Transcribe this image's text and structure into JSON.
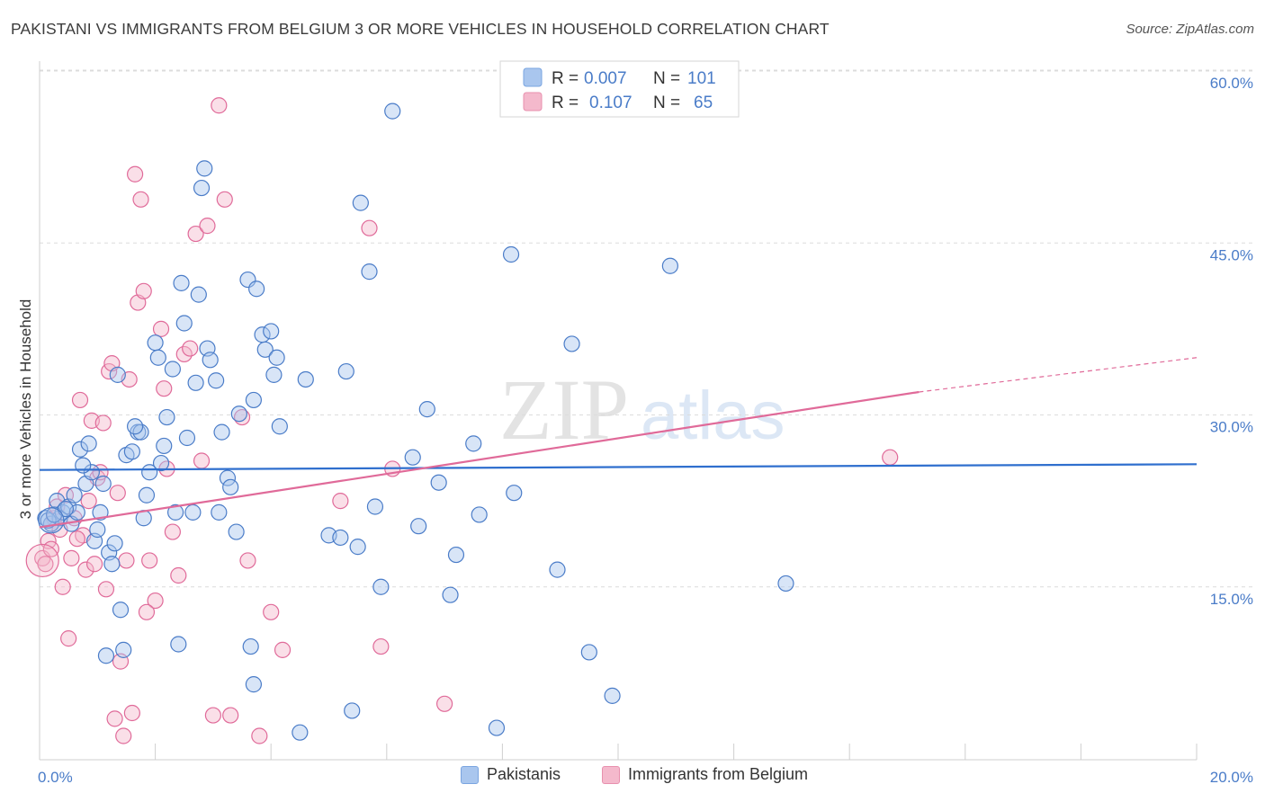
{
  "title": "PAKISTANI VS IMMIGRANTS FROM BELGIUM 3 OR MORE VEHICLES IN HOUSEHOLD CORRELATION CHART",
  "source": "Source: ZipAtlas.com",
  "watermark": {
    "zip": "ZIP",
    "atlas": "atlas"
  },
  "colors": {
    "blue": "#4a7cc8",
    "blue_fill": "#a9c6ee",
    "blue_line": "#2f6fce",
    "pink": "#e06a99",
    "pink_fill": "#f4b9cc",
    "pink_line": "#e06a99",
    "grid": "#dcdcdc"
  },
  "legend": {
    "rows": [
      {
        "r_label": "R =",
        "r_value": "0.007",
        "n_label": "N =",
        "n_value": "101"
      },
      {
        "r_label": "R =",
        "r_value": "0.107",
        "n_label": "N =",
        "n_value": "65"
      }
    ]
  },
  "bottom_legend": [
    "Pakistanis",
    "Immigrants from Belgium"
  ],
  "chart_data": {
    "type": "scatter",
    "ylabel": "3 or more Vehicles in Household",
    "xlim": [
      0,
      20
    ],
    "ylim": [
      0,
      63
    ],
    "x_tick_labels": {
      "left": "0.0%",
      "right": "20.0%"
    },
    "y_ticks": [
      15,
      30,
      45,
      60
    ],
    "y_tick_labels": [
      "15.0%",
      "30.0%",
      "45.0%",
      "60.0%"
    ],
    "grid": true,
    "legend_position": "top-center",
    "series": [
      {
        "name": "Pakistanis",
        "trend": {
          "x": [
            0,
            20
          ],
          "y": [
            25.2,
            25.7
          ]
        },
        "points": [
          [
            0.1,
            21
          ],
          [
            0.2,
            20.5
          ],
          [
            0.3,
            22.5
          ],
          [
            0.35,
            21
          ],
          [
            0.4,
            21.5
          ],
          [
            0.5,
            22
          ],
          [
            0.55,
            20.5
          ],
          [
            0.6,
            23
          ],
          [
            0.65,
            21.5
          ],
          [
            0.7,
            27
          ],
          [
            0.8,
            24
          ],
          [
            0.85,
            27.5
          ],
          [
            0.9,
            25
          ],
          [
            0.95,
            19
          ],
          [
            1.0,
            20
          ],
          [
            1.05,
            21.5
          ],
          [
            1.1,
            24
          ],
          [
            1.15,
            9
          ],
          [
            1.2,
            18
          ],
          [
            1.3,
            18.8
          ],
          [
            1.35,
            33.5
          ],
          [
            1.4,
            13
          ],
          [
            1.5,
            26.5
          ],
          [
            1.6,
            26.8
          ],
          [
            1.7,
            28.5
          ],
          [
            1.75,
            28.5
          ],
          [
            1.8,
            21
          ],
          [
            1.85,
            23
          ],
          [
            1.9,
            25
          ],
          [
            2.0,
            36.3
          ],
          [
            2.05,
            35
          ],
          [
            2.1,
            25.8
          ],
          [
            2.2,
            29.8
          ],
          [
            2.3,
            34
          ],
          [
            2.35,
            21.5
          ],
          [
            2.4,
            10
          ],
          [
            2.45,
            41.5
          ],
          [
            2.5,
            38
          ],
          [
            2.55,
            28
          ],
          [
            2.65,
            21.5
          ],
          [
            2.7,
            32.8
          ],
          [
            2.8,
            49.8
          ],
          [
            2.85,
            51.5
          ],
          [
            2.9,
            35.8
          ],
          [
            2.95,
            34.8
          ],
          [
            3.05,
            33
          ],
          [
            3.1,
            21.5
          ],
          [
            3.15,
            28.5
          ],
          [
            3.25,
            24.5
          ],
          [
            3.3,
            23.7
          ],
          [
            3.4,
            19.8
          ],
          [
            3.6,
            41.8
          ],
          [
            3.65,
            9.8
          ],
          [
            3.7,
            31.3
          ],
          [
            3.7,
            6.5
          ],
          [
            3.75,
            41
          ],
          [
            3.85,
            37
          ],
          [
            3.9,
            35.7
          ],
          [
            4.0,
            37.3
          ],
          [
            4.05,
            33.5
          ],
          [
            4.1,
            35
          ],
          [
            4.15,
            29
          ],
          [
            4.5,
            2.3
          ],
          [
            5.0,
            19.5
          ],
          [
            5.2,
            19.3
          ],
          [
            5.3,
            33.8
          ],
          [
            5.4,
            4.2
          ],
          [
            5.5,
            18.5
          ],
          [
            5.55,
            48.5
          ],
          [
            5.7,
            42.5
          ],
          [
            5.8,
            22
          ],
          [
            5.9,
            15
          ],
          [
            6.1,
            56.5
          ],
          [
            6.45,
            26.3
          ],
          [
            6.55,
            20.3
          ],
          [
            6.7,
            30.5
          ],
          [
            7.1,
            14.3
          ],
          [
            7.2,
            17.8
          ],
          [
            7.5,
            27.5
          ],
          [
            7.6,
            21.3
          ],
          [
            7.9,
            2.7
          ],
          [
            8.15,
            44
          ],
          [
            8.2,
            23.2
          ],
          [
            8.95,
            16.5
          ],
          [
            9.2,
            36.2
          ],
          [
            9.5,
            9.3
          ],
          [
            9.9,
            5.5
          ],
          [
            10.9,
            43
          ],
          [
            12.9,
            15.3
          ],
          [
            0.15,
            20.8
          ],
          [
            0.25,
            21.3
          ],
          [
            0.45,
            21.8
          ],
          [
            0.75,
            25.6
          ],
          [
            1.25,
            17
          ],
          [
            1.45,
            9.5
          ],
          [
            1.65,
            29
          ],
          [
            2.15,
            27.3
          ],
          [
            2.75,
            40.5
          ],
          [
            3.45,
            30.1
          ],
          [
            4.6,
            33.1
          ],
          [
            6.9,
            24.1
          ]
        ]
      },
      {
        "name": "Immigrants from Belgium",
        "trend": {
          "x": [
            0,
            15.2
          ],
          "y": [
            20.2,
            32.0
          ],
          "dash_x": [
            15.2,
            20
          ],
          "dash_y": [
            32.0,
            35.0
          ]
        },
        "points": [
          [
            0.05,
            17.5
          ],
          [
            0.1,
            17
          ],
          [
            0.15,
            19
          ],
          [
            0.2,
            20.5
          ],
          [
            0.25,
            21
          ],
          [
            0.3,
            22
          ],
          [
            0.35,
            20
          ],
          [
            0.4,
            15
          ],
          [
            0.45,
            23
          ],
          [
            0.5,
            10.5
          ],
          [
            0.55,
            17.5
          ],
          [
            0.6,
            21
          ],
          [
            0.7,
            31.3
          ],
          [
            0.75,
            19.5
          ],
          [
            0.8,
            16.5
          ],
          [
            0.85,
            22.5
          ],
          [
            0.9,
            29.5
          ],
          [
            0.95,
            17
          ],
          [
            1.0,
            24.5
          ],
          [
            1.05,
            25
          ],
          [
            1.1,
            29.3
          ],
          [
            1.15,
            14.8
          ],
          [
            1.2,
            33.8
          ],
          [
            1.25,
            34.5
          ],
          [
            1.3,
            3.5
          ],
          [
            1.35,
            23.2
          ],
          [
            1.4,
            8.5
          ],
          [
            1.45,
            2
          ],
          [
            1.5,
            17.3
          ],
          [
            1.55,
            33.1
          ],
          [
            1.6,
            4
          ],
          [
            1.65,
            51
          ],
          [
            1.7,
            39.8
          ],
          [
            1.75,
            48.8
          ],
          [
            1.8,
            40.8
          ],
          [
            1.9,
            17.3
          ],
          [
            2.0,
            13.8
          ],
          [
            2.1,
            37.5
          ],
          [
            2.15,
            32.3
          ],
          [
            2.2,
            25.3
          ],
          [
            2.3,
            19.8
          ],
          [
            2.4,
            16
          ],
          [
            2.5,
            35.3
          ],
          [
            2.6,
            35.8
          ],
          [
            2.7,
            45.8
          ],
          [
            2.8,
            26
          ],
          [
            2.9,
            46.5
          ],
          [
            3.0,
            3.8
          ],
          [
            3.1,
            57
          ],
          [
            3.2,
            48.8
          ],
          [
            3.3,
            3.8
          ],
          [
            3.5,
            29.8
          ],
          [
            3.6,
            17.3
          ],
          [
            3.8,
            2
          ],
          [
            4.0,
            12.8
          ],
          [
            4.2,
            9.5
          ],
          [
            5.2,
            22.5
          ],
          [
            5.7,
            46.3
          ],
          [
            5.9,
            9.8
          ],
          [
            6.1,
            25.3
          ],
          [
            7.0,
            4.8
          ],
          [
            14.7,
            26.3
          ],
          [
            0.65,
            19.2
          ],
          [
            1.85,
            12.8
          ],
          [
            0.2,
            18.3
          ]
        ]
      }
    ]
  }
}
